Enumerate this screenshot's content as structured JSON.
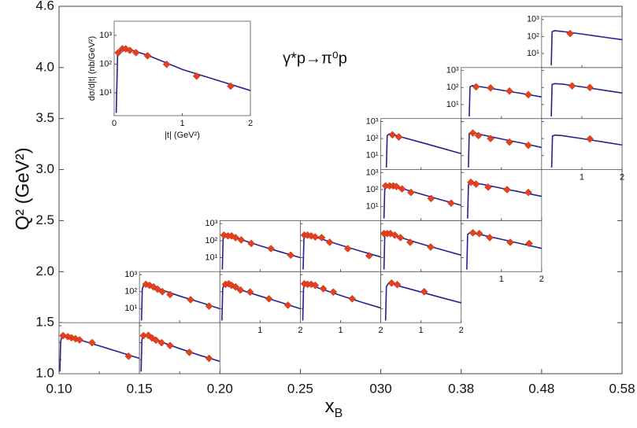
{
  "chart_data": {
    "type": "scatter",
    "annotation": "γ*p→π⁰p",
    "ylabel": "Q² (GeV²)",
    "xlabel": "x",
    "xlabel_sub": "B",
    "xtick_labels": [
      "0.10",
      "0.15",
      "0.20",
      "0.25",
      "030",
      "0.38",
      "0.48",
      "0.58"
    ],
    "ylim": [
      1.0,
      4.6
    ],
    "yticks": [
      {
        "value": 1.0,
        "label": "1.0"
      },
      1.5,
      {
        "value": 2.0,
        "label": "2.0"
      },
      2.5,
      {
        "value": 3.0,
        "label": "3.0"
      },
      3.5,
      {
        "value": 4.0,
        "label": "4.0"
      },
      4.6
    ],
    "curve_color": "#23238f",
    "point_color": "#e8401c",
    "panel_xlim": [
      0,
      2
    ],
    "panel_ylim": [
      1.5,
      1500
    ],
    "panel_log_y": true,
    "panel_xticks": [
      1,
      2
    ],
    "panel_yticks": [
      {
        "value": 10,
        "label": "10¹"
      },
      {
        "value": 100,
        "label": "10²"
      },
      {
        "value": 1000,
        "label": "10³"
      }
    ],
    "panels": [
      {
        "xb_bin": 0,
        "q2": [
          1.0,
          1.5
        ],
        "t": [
          0.1,
          0.22,
          0.31,
          0.41,
          0.51,
          0.82,
          1.73
        ],
        "values": [
          260,
          225,
          195,
          170,
          145,
          100,
          16
        ],
        "curve": {
          "t": [
            0.02,
            0.04,
            0.08,
            0.5,
            1,
            1.5,
            2
          ],
          "values": [
            2,
            120,
            270,
            150,
            65,
            28,
            12
          ]
        }
      },
      {
        "xb_bin": 1,
        "q2": [
          1.0,
          1.5
        ],
        "t": [
          0.1,
          0.22,
          0.31,
          0.41,
          0.55,
          0.76,
          1.24,
          1.73
        ],
        "values": [
          260,
          270,
          190,
          140,
          100,
          68,
          27,
          12
        ],
        "curve": {
          "t": [
            0.04,
            0.06,
            0.1,
            0.5,
            1,
            1.5,
            2
          ],
          "values": [
            2,
            150,
            290,
            120,
            45,
            18,
            8
          ]
        }
      },
      {
        "xb_bin": 1,
        "q2": [
          1.5,
          2.0
        ],
        "show_yticks": true,
        "t": [
          0.16,
          0.25,
          0.35,
          0.45,
          0.57,
          0.76,
          1.27,
          1.73
        ],
        "values": [
          270,
          235,
          190,
          140,
          100,
          68,
          34,
          14
        ],
        "curve": {
          "t": [
            0.05,
            0.07,
            0.12,
            0.5,
            1,
            1.5,
            2
          ],
          "values": [
            2,
            150,
            290,
            140,
            55,
            24,
            10
          ]
        }
      },
      {
        "xb_bin": 2,
        "q2": [
          1.5,
          2.0
        ],
        "show_xticks": true,
        "t": [
          0.14,
          0.22,
          0.29,
          0.39,
          0.51,
          0.75,
          1.22,
          1.69
        ],
        "values": [
          270,
          290,
          235,
          190,
          125,
          95,
          38,
          16
        ],
        "curve": {
          "t": [
            0.05,
            0.07,
            0.12,
            0.5,
            1,
            1.5,
            2
          ],
          "values": [
            2,
            160,
            300,
            130,
            55,
            24,
            10
          ]
        }
      },
      {
        "xb_bin": 2,
        "q2": [
          2.0,
          2.5
        ],
        "show_yticks": true,
        "t": [
          0.1,
          0.2,
          0.29,
          0.39,
          0.53,
          0.78,
          1.27,
          1.76
        ],
        "values": [
          210,
          190,
          190,
          150,
          110,
          68,
          34,
          14
        ],
        "curve": {
          "t": [
            0.06,
            0.08,
            0.13,
            0.5,
            1,
            1.5,
            2
          ],
          "values": [
            2,
            140,
            230,
            120,
            50,
            22,
            10
          ]
        }
      },
      {
        "xb_bin": 3,
        "q2": [
          1.5,
          2.0
        ],
        "show_xticks": true,
        "t": [
          0.1,
          0.18,
          0.27,
          0.37,
          0.57,
          0.82,
          1.29
        ],
        "values": [
          290,
          270,
          270,
          235,
          150,
          95,
          38
        ],
        "curve": {
          "t": [
            0.06,
            0.08,
            0.13,
            0.5,
            1,
            1.5,
            2
          ],
          "values": [
            2,
            160,
            300,
            150,
            60,
            25,
            11
          ]
        }
      },
      {
        "xb_bin": 3,
        "q2": [
          2.0,
          2.5
        ],
        "t": [
          0.1,
          0.18,
          0.27,
          0.37,
          0.53,
          0.73,
          1.18,
          1.71
        ],
        "values": [
          210,
          210,
          190,
          165,
          150,
          80,
          34,
          13
        ],
        "curve": {
          "t": [
            0.07,
            0.09,
            0.14,
            0.5,
            1,
            1.5,
            2
          ],
          "values": [
            2,
            150,
            230,
            130,
            55,
            24,
            11
          ]
        }
      },
      {
        "xb_bin": 4,
        "q2": [
          1.5,
          2.0
        ],
        "show_xticks": true,
        "t": [
          0.27,
          0.41,
          1.08
        ],
        "values": [
          320,
          260,
          100
        ],
        "curve": {
          "t": [
            0.12,
            0.14,
            0.2,
            0.5,
            1,
            1.5,
            2
          ],
          "values": [
            2,
            200,
            330,
            200,
            95,
            45,
            22
          ]
        }
      },
      {
        "xb_bin": 4,
        "q2": [
          2.0,
          2.5
        ],
        "t": [
          0.08,
          0.16,
          0.24,
          0.35,
          0.49,
          0.73,
          1.24
        ],
        "values": [
          260,
          260,
          260,
          210,
          150,
          80,
          42
        ],
        "curve": {
          "t": [
            0.08,
            0.1,
            0.15,
            0.5,
            1,
            1.5,
            2
          ],
          "values": [
            2,
            200,
            280,
            150,
            65,
            30,
            14
          ]
        }
      },
      {
        "xb_bin": 4,
        "q2": [
          2.5,
          3.0
        ],
        "show_yticks": true,
        "t": [
          0.12,
          0.22,
          0.31,
          0.39,
          0.53,
          0.75,
          1.25,
          1.75
        ],
        "values": [
          165,
          165,
          165,
          150,
          110,
          68,
          30,
          16
        ],
        "curve": {
          "t": [
            0.08,
            0.1,
            0.15,
            0.5,
            1,
            1.5,
            2
          ],
          "values": [
            2,
            140,
            190,
            120,
            55,
            25,
            12
          ]
        }
      },
      {
        "xb_bin": 4,
        "q2": [
          3.0,
          3.5
        ],
        "show_yticks": true,
        "t": [
          0.29,
          0.45
        ],
        "values": [
          165,
          125
        ],
        "curve": {
          "t": [
            0.14,
            0.16,
            0.22,
            0.5,
            1,
            1.5,
            2
          ],
          "values": [
            2,
            150,
            190,
            125,
            60,
            28,
            13
          ]
        }
      },
      {
        "xb_bin": 5,
        "q2": [
          2.0,
          2.5
        ],
        "show_xticks": true,
        "t": [
          0.29,
          0.45,
          0.71,
          1.22,
          1.69
        ],
        "values": [
          290,
          260,
          150,
          80,
          68
        ],
        "curve": {
          "t": [
            0.14,
            0.16,
            0.22,
            0.5,
            1,
            1.5,
            2
          ],
          "values": [
            2,
            230,
            300,
            220,
            120,
            65,
            35
          ]
        }
      },
      {
        "xb_bin": 5,
        "q2": [
          2.5,
          3.0
        ],
        "t": [
          0.24,
          0.37,
          0.67,
          1.14,
          1.67
        ],
        "values": [
          270,
          210,
          140,
          100,
          68
        ],
        "curve": {
          "t": [
            0.16,
            0.18,
            0.24,
            0.5,
            1,
            1.5,
            2
          ],
          "values": [
            2,
            200,
            280,
            210,
            120,
            70,
            40
          ]
        }
      },
      {
        "xb_bin": 5,
        "q2": [
          3.0,
          3.5
        ],
        "t": [
          0.29,
          0.43,
          0.73,
          1.2,
          1.67
        ],
        "values": [
          210,
          150,
          100,
          62,
          40
        ],
        "curve": {
          "t": [
            0.18,
            0.2,
            0.26,
            0.5,
            1,
            1.5,
            2
          ],
          "values": [
            2,
            200,
            240,
            170,
            95,
            55,
            30
          ]
        }
      },
      {
        "xb_bin": 5,
        "q2": [
          3.5,
          4.0
        ],
        "show_yticks": true,
        "t": [
          0.37,
          0.73,
          1.2,
          1.67
        ],
        "values": [
          110,
          95,
          62,
          38
        ],
        "curve": {
          "t": [
            0.2,
            0.22,
            0.28,
            0.5,
            1,
            1.5,
            2
          ],
          "values": [
            2,
            110,
            130,
            110,
            70,
            45,
            28
          ]
        }
      },
      {
        "xb_bin": 6,
        "q2": [
          3.0,
          3.5
        ],
        "show_xticks": true,
        "t": [
          1.2
        ],
        "values": [
          95
        ],
        "curve": {
          "t": [
            0.25,
            0.27,
            0.33,
            0.5,
            1,
            1.5,
            2
          ],
          "values": [
            2,
            140,
            160,
            150,
            100,
            65,
            42
          ]
        }
      },
      {
        "xb_bin": 6,
        "q2": [
          3.5,
          4.0
        ],
        "t": [
          0.76,
          1.2
        ],
        "values": [
          125,
          100
        ],
        "curve": {
          "t": [
            0.24,
            0.26,
            0.32,
            0.5,
            1,
            1.5,
            2
          ],
          "values": [
            2,
            150,
            170,
            160,
            110,
            72,
            48
          ]
        }
      },
      {
        "xb_bin": 6,
        "q2": [
          4.0,
          4.5
        ],
        "show_yticks": true,
        "t": [
          0.71
        ],
        "values": [
          150
        ],
        "curve": {
          "t": [
            0.24,
            0.26,
            0.32,
            0.5,
            1,
            1.5,
            2
          ],
          "values": [
            2,
            190,
            220,
            200,
            140,
            95,
            65
          ]
        }
      }
    ],
    "inset": {
      "xlabel": "|t| (GeV²)",
      "ylabel": "dσ/d|t| (nb/GeV²)",
      "xlim": [
        0,
        2
      ],
      "ylim": [
        1.6,
        3100
      ],
      "log_y": true,
      "xticks": [
        0,
        1,
        2
      ],
      "yticks": [
        {
          "value": 10,
          "label": "10¹"
        },
        {
          "value": 100,
          "label": "10²"
        },
        {
          "value": 1000,
          "label": "10³"
        }
      ],
      "t": [
        0.06,
        0.12,
        0.17,
        0.23,
        0.32,
        0.49,
        0.77,
        1.21,
        1.71
      ],
      "values": [
        250,
        340,
        340,
        300,
        250,
        195,
        98,
        38,
        17
      ],
      "curve": {
        "t": [
          0.03,
          0.05,
          0.1,
          0.2,
          0.5,
          1,
          1.5,
          2
        ],
        "values": [
          2,
          200,
          330,
          340,
          200,
          65,
          28,
          12
        ]
      }
    }
  }
}
